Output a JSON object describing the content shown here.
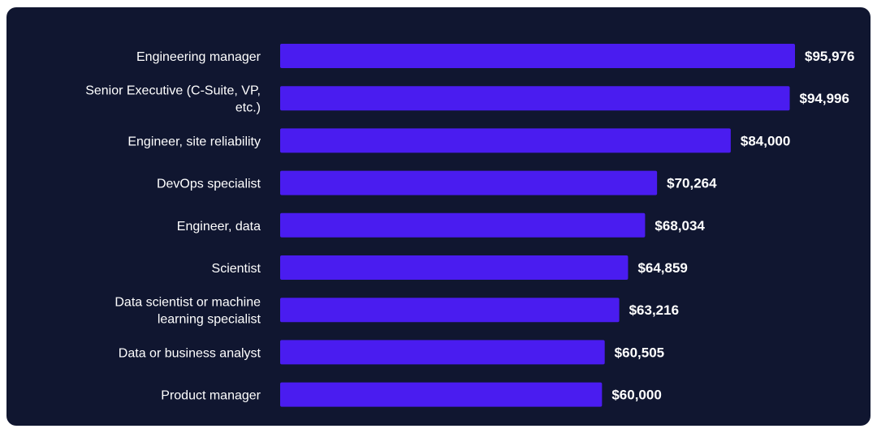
{
  "colors": {
    "background": "#101630",
    "bar": "#4a1cf0",
    "text": "#ffffff"
  },
  "chart_data": {
    "type": "bar",
    "orientation": "horizontal",
    "categories": [
      "Engineering manager",
      "Senior Executive (C-Suite, VP, etc.)",
      "Engineer, site reliability",
      "DevOps specialist",
      "Engineer, data",
      "Scientist",
      "Data scientist or machine learning specialist",
      "Data or business analyst",
      "Product manager"
    ],
    "category_lines": [
      [
        "Engineering manager"
      ],
      [
        "Senior Executive (C-Suite, VP,",
        "etc.)"
      ],
      [
        "Engineer, site reliability"
      ],
      [
        "DevOps specialist"
      ],
      [
        "Engineer, data"
      ],
      [
        "Scientist"
      ],
      [
        "Data scientist or machine",
        "learning specialist"
      ],
      [
        "Data or business analyst"
      ],
      [
        "Product manager"
      ]
    ],
    "values": [
      95976,
      94996,
      84000,
      70264,
      68034,
      64859,
      63216,
      60505,
      60000
    ],
    "value_labels": [
      "$95,976",
      "$94,996",
      "$84,000",
      "$70,264",
      "$68,034",
      "$64,859",
      "$63,216",
      "$60,505",
      "$60,000"
    ],
    "title": "",
    "xlabel": "",
    "ylabel": "",
    "xlim": [
      0,
      95976
    ],
    "grid": false,
    "legend": "none"
  }
}
